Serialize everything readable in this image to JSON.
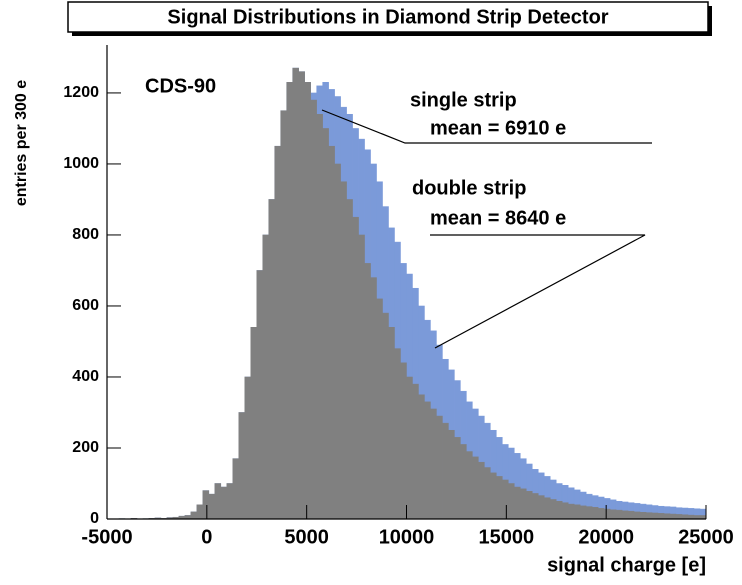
{
  "chart_data": {
    "type": "histogram",
    "title": "Signal Distributions in Diamond Strip Detector",
    "x_label": "signal charge [e]",
    "y_label": "entries per 300 e",
    "annotations": [
      "CDS-90",
      "single strip",
      "mean = 6910 e",
      "double strip",
      "mean = 8640 e"
    ],
    "bins": [
      -5000,
      -4700,
      -4400,
      -4100,
      -3800,
      -3500,
      -3200,
      -2900,
      -2600,
      -2300,
      -2000,
      -1700,
      -1400,
      -1100,
      -800,
      -500,
      -200,
      100,
      400,
      700,
      1000,
      1300,
      1600,
      1900,
      2200,
      2500,
      2800,
      3100,
      3400,
      3700,
      4000,
      4300,
      4600,
      4900,
      5200,
      5500,
      5800,
      6100,
      6400,
      6700,
      7000,
      7300,
      7600,
      7900,
      8200,
      8500,
      8800,
      9100,
      9400,
      9700,
      10000,
      10300,
      10600,
      10900,
      11200,
      11500,
      11800,
      12100,
      12400,
      12700,
      13000,
      13300,
      13600,
      13900,
      14200,
      14500,
      14800,
      15100,
      15400,
      15700,
      16000,
      16300,
      16600,
      16900,
      17200,
      17500,
      17800,
      18100,
      18400,
      18700,
      19000,
      19300,
      19600,
      19900,
      20200,
      20500,
      20800,
      21100,
      21400,
      21700,
      22000,
      22300,
      22600,
      22900,
      23200,
      23500,
      23800,
      24100,
      24400,
      24700,
      25000
    ],
    "series": [
      {
        "name": "double strip",
        "color": "#7b9ad9",
        "values": [
          0,
          0,
          1,
          0,
          2,
          0,
          1,
          2,
          3,
          2,
          4,
          5,
          8,
          10,
          20,
          40,
          80,
          70,
          100,
          90,
          100,
          170,
          300,
          400,
          540,
          700,
          800,
          900,
          1050,
          1150,
          1230,
          1270,
          1260,
          1230,
          1200,
          1220,
          1230,
          1210,
          1190,
          1160,
          1140,
          1100,
          1070,
          1040,
          1000,
          950,
          880,
          820,
          780,
          720,
          690,
          650,
          600,
          560,
          530,
          490,
          450,
          420,
          390,
          360,
          330,
          310,
          290,
          270,
          250,
          230,
          210,
          200,
          185,
          170,
          155,
          140,
          130,
          120,
          110,
          100,
          95,
          88,
          82,
          76,
          70,
          66,
          62,
          58,
          54,
          50,
          48,
          46,
          44,
          42,
          40,
          38,
          36,
          35,
          34,
          32,
          31,
          30,
          29,
          28
        ]
      },
      {
        "name": "single strip",
        "color": "#808080",
        "values": [
          0,
          0,
          1,
          0,
          2,
          0,
          1,
          2,
          3,
          2,
          4,
          5,
          8,
          10,
          20,
          40,
          80,
          70,
          100,
          90,
          100,
          170,
          300,
          400,
          540,
          700,
          800,
          900,
          1050,
          1150,
          1230,
          1270,
          1260,
          1230,
          1180,
          1140,
          1100,
          1050,
          1000,
          950,
          900,
          850,
          800,
          720,
          680,
          620,
          580,
          540,
          480,
          440,
          400,
          380,
          350,
          330,
          310,
          290,
          270,
          250,
          230,
          210,
          190,
          175,
          160,
          145,
          130,
          120,
          110,
          100,
          90,
          85,
          78,
          72,
          66,
          60,
          55,
          50,
          46,
          42,
          40,
          37,
          35,
          33,
          30,
          28,
          26,
          25,
          23,
          22,
          20,
          19,
          18,
          17,
          16,
          15,
          14,
          13,
          12,
          11,
          10,
          10
        ]
      }
    ],
    "xlim": [
      -5000,
      25000
    ],
    "xticks": [
      -5000,
      0,
      5000,
      10000,
      15000,
      20000,
      25000
    ],
    "ylim": [
      0,
      1335
    ],
    "yticks": [
      0,
      200,
      400,
      600,
      800,
      1000,
      1200
    ]
  }
}
